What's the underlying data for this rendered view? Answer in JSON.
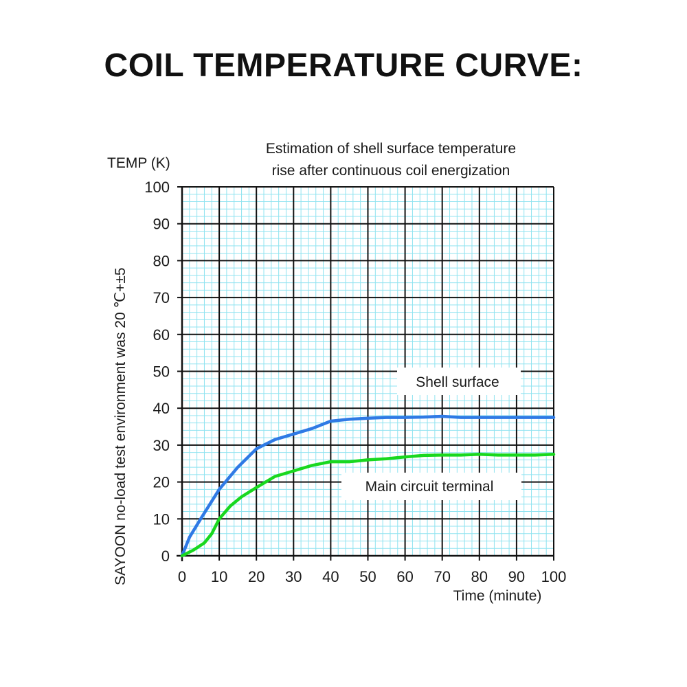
{
  "heading": "COIL TEMPERATURE CURVE:",
  "colors": {
    "shell": "#2f7ae5",
    "terminal": "#19d81f",
    "minor_grid": "#8fe3f0",
    "major_grid": "#111111"
  },
  "chart_data": {
    "type": "line",
    "title_line1": "Estimation of shell surface temperature",
    "title_line2": "rise after continuous coil energization",
    "ylabel": "TEMP (K)",
    "xlabel": "Time (minute)",
    "side_note": "SAYOON no-load test environment was 20  ℃+±5",
    "xlim": [
      0,
      100
    ],
    "ylim": [
      0,
      100
    ],
    "xticks": [
      0,
      10,
      20,
      30,
      40,
      50,
      60,
      70,
      80,
      90,
      100
    ],
    "yticks": [
      0,
      10,
      20,
      30,
      40,
      50,
      60,
      70,
      80,
      90,
      100
    ],
    "grid": "on",
    "series": [
      {
        "name": "Shell surface",
        "x": [
          0,
          2,
          5,
          10,
          15,
          20,
          25,
          30,
          35,
          40,
          45,
          50,
          55,
          60,
          65,
          70,
          75,
          80,
          85,
          90,
          95,
          100
        ],
        "y": [
          0,
          5,
          10,
          18,
          24,
          29,
          31.5,
          33,
          34.5,
          36.5,
          37,
          37.3,
          37.5,
          37.5,
          37.6,
          37.8,
          37.5,
          37.5,
          37.5,
          37.5,
          37.5,
          37.5
        ]
      },
      {
        "name": "Main circuit terminal",
        "x": [
          0,
          3,
          6,
          8,
          10,
          13,
          16,
          20,
          25,
          30,
          35,
          40,
          45,
          50,
          55,
          60,
          65,
          70,
          75,
          80,
          85,
          90,
          95,
          100
        ],
        "y": [
          0,
          1.5,
          3.5,
          6,
          10,
          13.5,
          16,
          18.5,
          21.5,
          23,
          24.5,
          25.5,
          25.5,
          26,
          26.3,
          26.8,
          27.2,
          27.3,
          27.3,
          27.5,
          27.3,
          27.3,
          27.3,
          27.5
        ]
      }
    ],
    "annotations": [
      "Shell surface",
      "Main circuit terminal"
    ]
  }
}
